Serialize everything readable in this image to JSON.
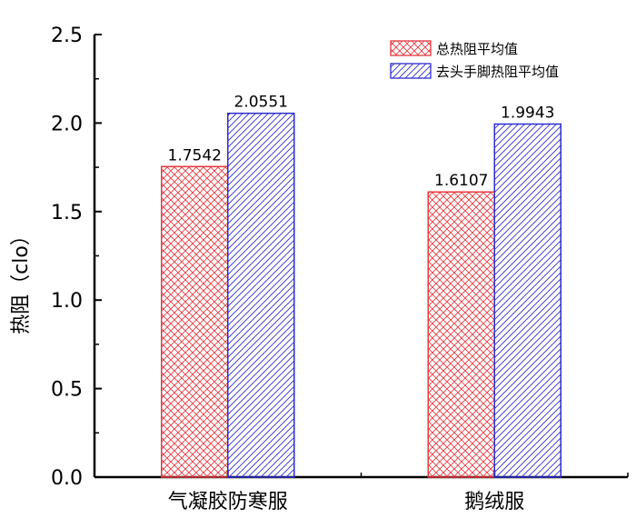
{
  "chart_data": {
    "type": "bar",
    "categories": [
      "气凝胶防寒服",
      "鹅绒服"
    ],
    "series": [
      {
        "name": "总热阻平均值",
        "values": [
          1.7542,
          1.6107
        ],
        "color": "#e8383d",
        "hatch": "crosshatch"
      },
      {
        "name": "去头手脚热阻平均值",
        "values": [
          2.0551,
          1.9943
        ],
        "color": "#2d2dd0",
        "hatch": "diagonal"
      }
    ],
    "data_labels": [
      [
        "1.7542",
        "1.6107"
      ],
      [
        "2.0551",
        "1.9943"
      ]
    ],
    "ylabel": "热阻（clo）",
    "ylim": [
      0,
      2.5
    ],
    "yticks": [
      "0.0",
      "0.5",
      "1.0",
      "1.5",
      "2.0",
      "2.5"
    ],
    "legend_position": "top-right",
    "grid": false
  }
}
